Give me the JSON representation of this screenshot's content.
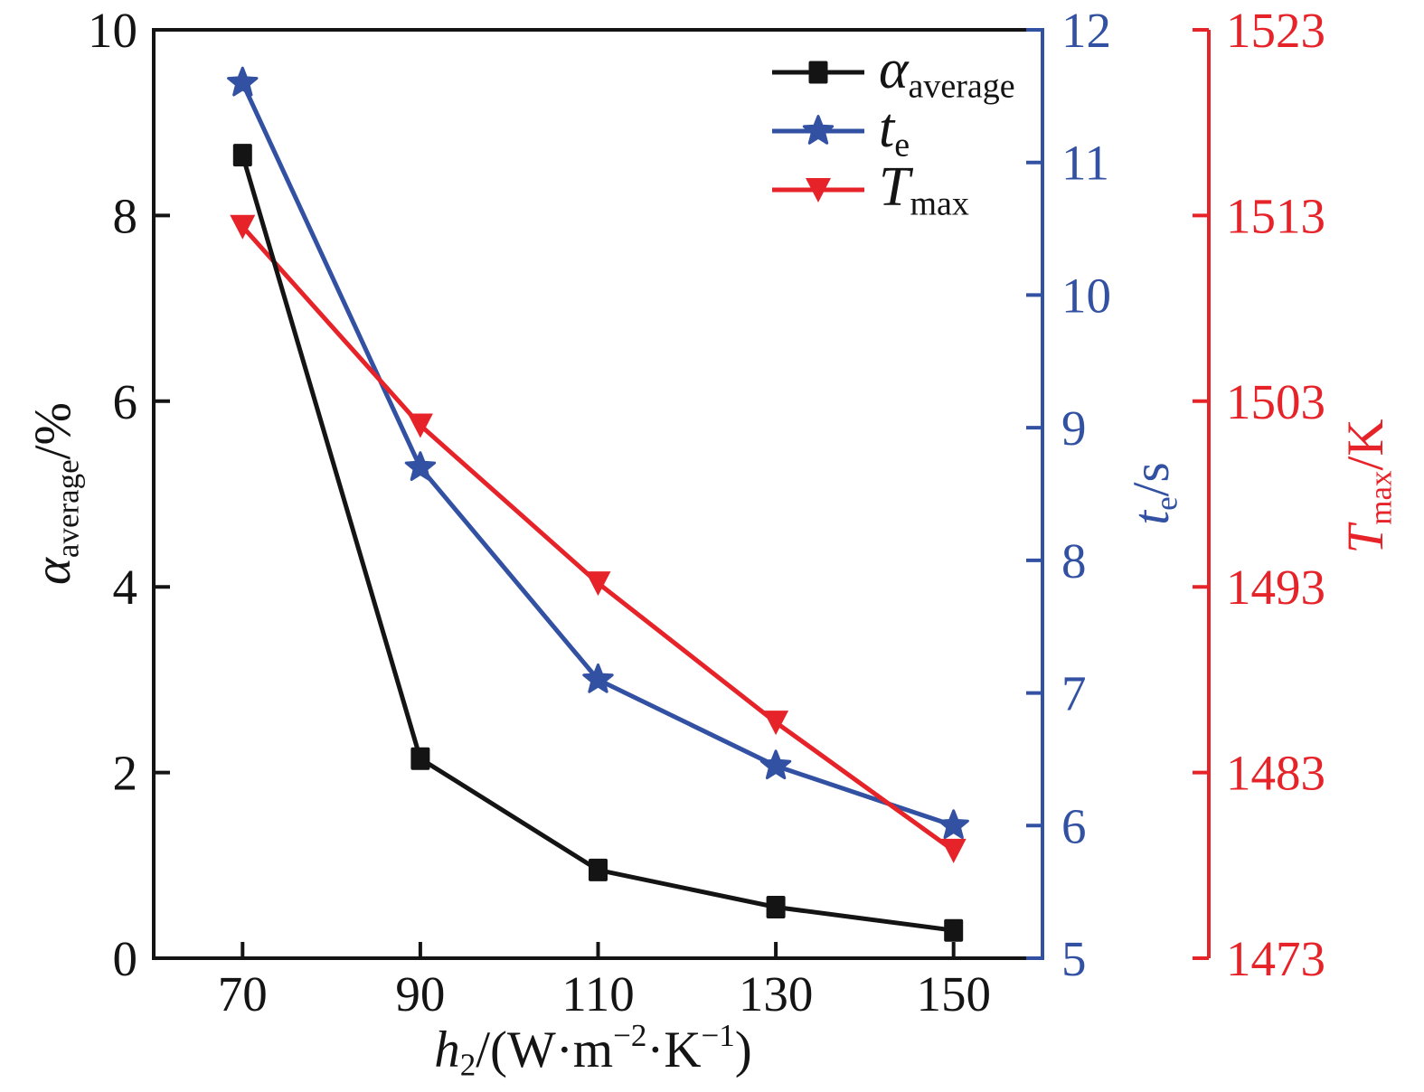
{
  "figure": {
    "background": "#ffffff"
  },
  "chart_data": {
    "type": "line",
    "x": [
      70,
      90,
      110,
      130,
      150
    ],
    "series": [
      {
        "name": "alpha-average",
        "axis": "left",
        "color": "#141414",
        "marker": "square",
        "label_rich": [
          {
            "t": "α",
            "it": true
          },
          {
            "t": "average",
            "pos": "sub"
          }
        ],
        "values": [
          8.65,
          2.15,
          0.95,
          0.55,
          0.3
        ]
      },
      {
        "name": "te",
        "axis": "te",
        "color": "#3351a2",
        "marker": "star",
        "label_rich": [
          {
            "t": "t",
            "it": true
          },
          {
            "t": "e",
            "pos": "sub"
          }
        ],
        "values": [
          11.6,
          8.7,
          7.1,
          6.45,
          6.0
        ]
      },
      {
        "name": "tmax",
        "axis": "tmax",
        "color": "#e62329",
        "marker": "triangle-down",
        "label_rich": [
          {
            "t": "T",
            "it": true
          },
          {
            "t": "max",
            "pos": "sub"
          }
        ],
        "values": [
          1512.4,
          1501.7,
          1493.2,
          1485.7,
          1478.8
        ]
      }
    ],
    "axes": {
      "x": {
        "range": [
          60,
          160
        ],
        "ticks": [
          70,
          90,
          110,
          130,
          150
        ],
        "tick_labels": [
          "70",
          "90",
          "110",
          "130",
          "150"
        ],
        "label_rich": [
          {
            "t": "h",
            "it": true
          },
          {
            "t": "2",
            "pos": "sub"
          },
          {
            "t": "/(W·m"
          },
          {
            "t": "−2",
            "pos": "sup"
          },
          {
            "t": "·K"
          },
          {
            "t": "−1",
            "pos": "sup"
          },
          {
            "t": ")"
          }
        ],
        "color": "#141414"
      },
      "left": {
        "range": [
          0,
          10
        ],
        "ticks": [
          0,
          2,
          4,
          6,
          8,
          10
        ],
        "tick_labels": [
          "0",
          "2",
          "4",
          "6",
          "8",
          "10"
        ],
        "label_rich": [
          {
            "t": "α",
            "it": true
          },
          {
            "t": "average",
            "pos": "sub"
          },
          {
            "t": "/%"
          }
        ],
        "color": "#141414"
      },
      "te": {
        "range": [
          5,
          12
        ],
        "ticks": [
          5,
          6,
          7,
          8,
          9,
          10,
          11,
          12
        ],
        "tick_labels": [
          "5",
          "6",
          "7",
          "8",
          "9",
          "10",
          "11",
          "12"
        ],
        "label_rich": [
          {
            "t": "t",
            "it": true
          },
          {
            "t": "e",
            "pos": "sub"
          },
          {
            "t": "/s"
          }
        ],
        "color": "#3351a2"
      },
      "tmax": {
        "range": [
          1473,
          1523
        ],
        "ticks": [
          1473,
          1483,
          1493,
          1503,
          1513,
          1523
        ],
        "tick_labels": [
          "1473",
          "1483",
          "1493",
          "1503",
          "1513",
          "1523"
        ],
        "label_rich": [
          {
            "t": "T",
            "it": true
          },
          {
            "t": "max",
            "pos": "sub"
          },
          {
            "t": "/K"
          }
        ],
        "color": "#e62329"
      }
    },
    "legend": {
      "position": "top-inside-right",
      "order": [
        "alpha-average",
        "te",
        "tmax"
      ]
    },
    "grid": false
  }
}
